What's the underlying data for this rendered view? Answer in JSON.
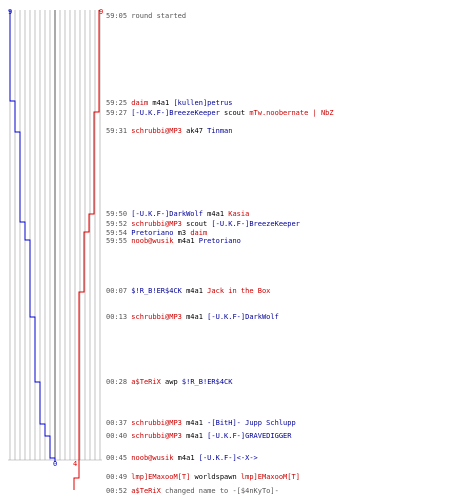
{
  "colors": {
    "red_team": "#e00000",
    "blue_team": "#0000cc",
    "grid": "#9a9a9a",
    "text_gray": "#555555"
  },
  "scoreboard": {
    "blue_start": "9",
    "red_start": "9",
    "blue_end": "0",
    "red_end": "4"
  },
  "events": [
    {
      "time": "59:05",
      "text": "round started",
      "kind": "info"
    },
    {
      "time": "59:25",
      "killer": "daim",
      "killer_team": "red",
      "weapon": "m4a1",
      "victim": "[kullen]petrus",
      "victim_team": "blue"
    },
    {
      "time": "59:27",
      "killer": "[-U.K.F-]BreezeKeeper",
      "killer_team": "blue",
      "weapon": "scout",
      "victim": "mTw.noobernate | NbZ",
      "victim_team": "red"
    },
    {
      "time": "59:31",
      "killer": "schrubbi@MP3",
      "killer_team": "red",
      "weapon": "ak47",
      "victim": "Tinman",
      "victim_team": "blue"
    },
    {
      "time": "59:50",
      "killer": "[-U.K.F-]DarkWolf",
      "killer_team": "blue",
      "weapon": "m4a1",
      "victim": "Kasia",
      "victim_team": "red"
    },
    {
      "time": "59:52",
      "killer": "schrubbi@MP3",
      "killer_team": "red",
      "weapon": "scout",
      "victim": "[-U.K.F-]BreezeKeeper",
      "victim_team": "blue"
    },
    {
      "time": "59:54",
      "killer": "Pretoriano",
      "killer_team": "blue",
      "weapon": "m3",
      "victim": "daim",
      "victim_team": "red"
    },
    {
      "time": "59:55",
      "killer": "noob@wusik",
      "killer_team": "red",
      "weapon": "m4a1",
      "victim": "Pretoriano",
      "victim_team": "blue"
    },
    {
      "time": "00:07",
      "killer": "$!R_B!ER$4CK",
      "killer_team": "blue",
      "weapon": "m4a1",
      "victim": "Jack in the Box",
      "victim_team": "red"
    },
    {
      "time": "00:13",
      "killer": "schrubbi@MP3",
      "killer_team": "red",
      "weapon": "m4a1",
      "victim": "[-U.K.F-]DarkWolf",
      "victim_team": "blue"
    },
    {
      "time": "00:28",
      "killer": "a$TeRiX",
      "killer_team": "red",
      "weapon": "awp",
      "victim": "$!R_B!ER$4CK",
      "victim_team": "blue"
    },
    {
      "time": "00:37",
      "killer": "schrubbi@MP3",
      "killer_team": "red",
      "weapon": "m4a1",
      "victim": "-[BitH]- Jupp Schlupp",
      "victim_team": "blue"
    },
    {
      "time": "00:40",
      "killer": "schrubbi@MP3",
      "killer_team": "red",
      "weapon": "m4a1",
      "victim": "[-U.K.F-]GRAVEDIGGER",
      "victim_team": "blue"
    },
    {
      "time": "00:45",
      "killer": "noob@wusik",
      "killer_team": "red",
      "weapon": "m4a1",
      "victim": "[-U.K.F-]<-X->",
      "victim_team": "blue"
    },
    {
      "time": "00:49",
      "killer": "lmp]EMaxooM[T]",
      "killer_team": "red",
      "weapon": "worldspawn",
      "victim": "lmp]EMaxooM[T]",
      "victim_team": "red"
    },
    {
      "time": "00:52",
      "killer": "a$TeRiX",
      "killer_team": "red",
      "weapon": "changed name to",
      "victim": "-[$4nKyTo]-",
      "victim_team": "gray"
    }
  ]
}
